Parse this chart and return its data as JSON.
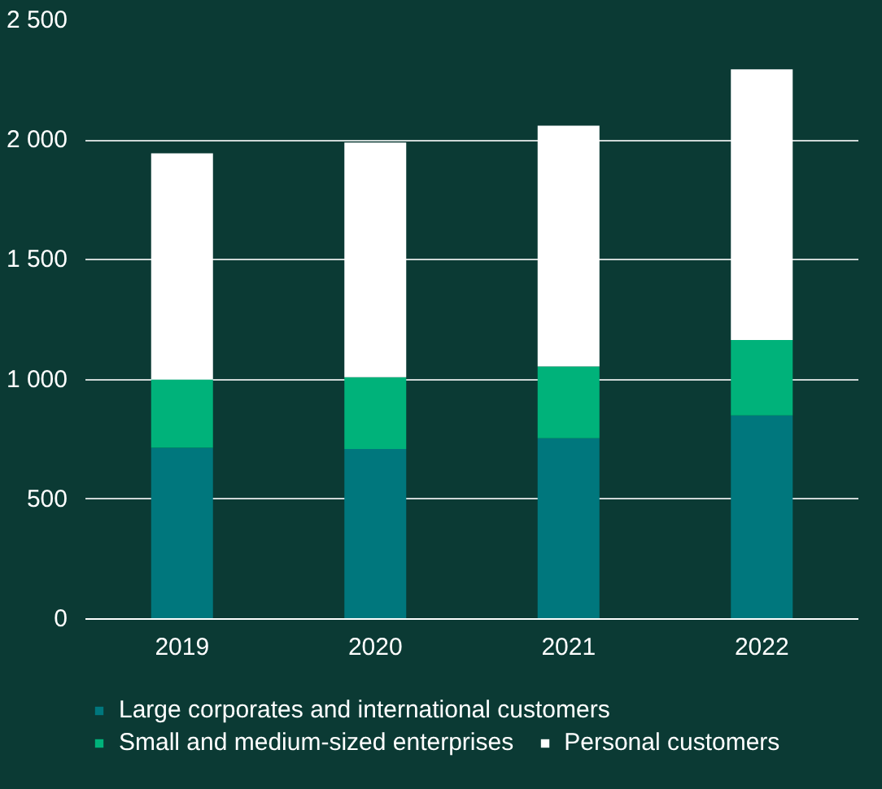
{
  "chart_data": {
    "type": "bar",
    "stacked": true,
    "categories": [
      "2019",
      "2020",
      "2021",
      "2022"
    ],
    "series": [
      {
        "name": "Large corporates and international customers",
        "color": "#00777d",
        "values": [
          715,
          710,
          755,
          850
        ]
      },
      {
        "name": "Small and medium-sized enterprises",
        "color": "#00b27a",
        "values": [
          285,
          300,
          300,
          315
        ]
      },
      {
        "name": "Personal customers",
        "color": "#ffffff",
        "values": [
          945,
          980,
          1005,
          1130
        ]
      }
    ],
    "ylim": [
      0,
      2500
    ],
    "yticks": [
      0,
      {
        "value": 500,
        "label": "500"
      },
      {
        "value": 1000,
        "label": "1 000"
      },
      {
        "value": 1500,
        "label": "1 500"
      },
      {
        "value": 2000,
        "label": "2 000"
      },
      {
        "value": 2500,
        "label": "2 500"
      }
    ],
    "grid": "y",
    "legend": "bottom"
  }
}
